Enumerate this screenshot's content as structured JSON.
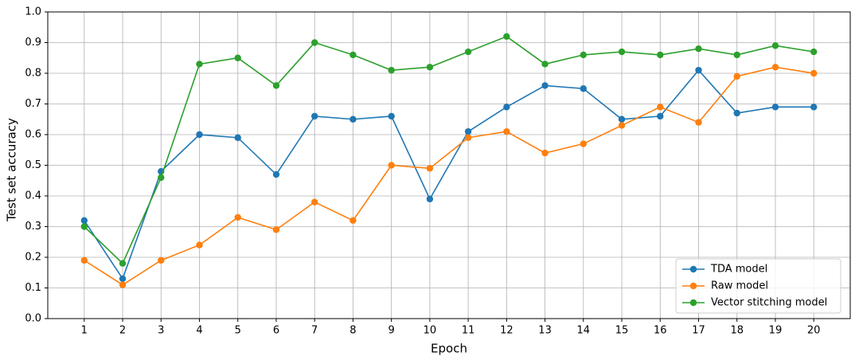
{
  "chart_data": {
    "type": "line",
    "x_label": "Epoch",
    "y_label": "Test set accuracy",
    "x": [
      1,
      2,
      3,
      4,
      5,
      6,
      7,
      8,
      9,
      10,
      11,
      12,
      13,
      14,
      15,
      16,
      17,
      18,
      19,
      20
    ],
    "xlim": [
      0.05,
      20.95
    ],
    "xticks": [
      1,
      2,
      3,
      4,
      5,
      6,
      7,
      8,
      9,
      10,
      11,
      12,
      13,
      14,
      15,
      16,
      17,
      18,
      19,
      20
    ],
    "ylim": [
      0,
      1
    ],
    "yticks": [
      {
        "value": 0,
        "label": "0.0"
      },
      0.1,
      0.2,
      0.3,
      0.4,
      0.5,
      0.6,
      0.7,
      0.8,
      0.9,
      {
        "value": 1,
        "label": "1.0"
      }
    ],
    "grid": true,
    "legend": "lower right",
    "series": [
      {
        "name": "TDA model",
        "color": "#1f77b4",
        "values": [
          0.32,
          0.13,
          0.48,
          0.6,
          0.59,
          0.47,
          0.66,
          0.65,
          0.66,
          0.39,
          0.61,
          0.69,
          0.76,
          0.75,
          0.65,
          0.66,
          0.81,
          0.67,
          0.69,
          0.69
        ]
      },
      {
        "name": "Raw model",
        "color": "#ff7f0e",
        "values": [
          0.19,
          0.11,
          0.19,
          0.24,
          0.33,
          0.29,
          0.38,
          0.32,
          0.5,
          0.49,
          0.59,
          0.61,
          0.54,
          0.57,
          0.63,
          0.69,
          0.64,
          0.79,
          0.82,
          0.8
        ]
      },
      {
        "name": "Vector stitching model",
        "color": "#2ca02c",
        "values": [
          0.3,
          0.18,
          0.46,
          0.83,
          0.85,
          0.76,
          0.9,
          0.86,
          0.81,
          0.82,
          0.87,
          0.92,
          0.83,
          0.86,
          0.87,
          0.86,
          0.88,
          0.86,
          0.89,
          0.87
        ]
      }
    ]
  }
}
